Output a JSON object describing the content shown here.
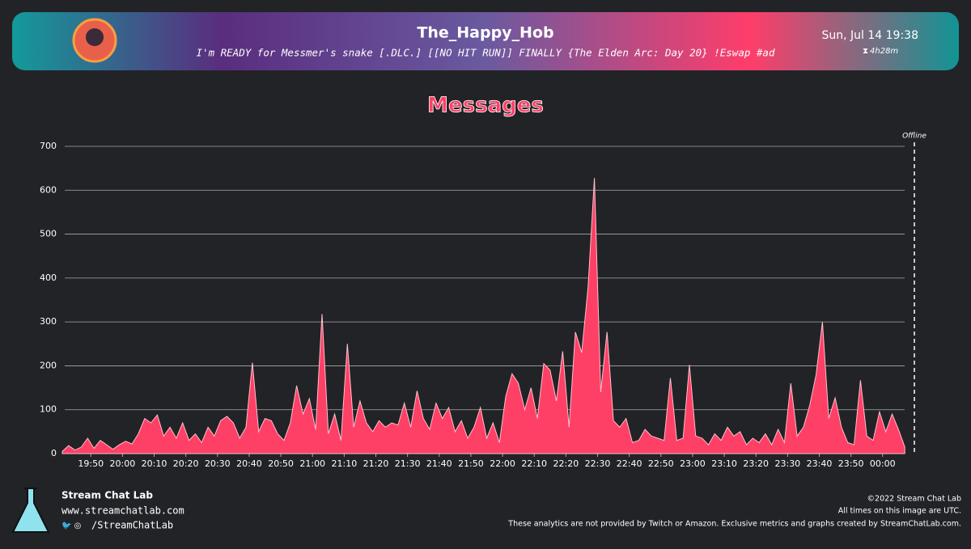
{
  "header": {
    "channel": "The_Happy_Hob",
    "stream_title": "I'm READY for Messmer's snake [.DLC.] [[NO HIT RUN]] FINALLY {The Elden Arc: Day 20} !Eswap #ad",
    "date": "Sun, Jul 14 19:38",
    "duration": "4h28m"
  },
  "chart_data": {
    "type": "area",
    "title": "Messages",
    "color": "#ff4066",
    "grid": true,
    "annotation": "Offline",
    "xlim": [
      "19:41",
      "00:09"
    ],
    "xticks": [
      "19:50",
      "20:00",
      "20:10",
      "20:20",
      "20:30",
      "20:40",
      "20:50",
      "21:00",
      "21:10",
      "21:20",
      "21:30",
      "21:40",
      "21:50",
      "22:00",
      "22:10",
      "22:20",
      "22:30",
      "22:40",
      "22:50",
      "23:00",
      "23:10",
      "23:20",
      "23:30",
      "23:40",
      "23:50",
      "00:00"
    ],
    "ylim": [
      0,
      700
    ],
    "yticks": [
      0,
      100,
      200,
      300,
      400,
      500,
      600,
      700
    ],
    "x": [
      "19:41",
      "19:43",
      "19:45",
      "19:47",
      "19:49",
      "19:51",
      "19:53",
      "19:55",
      "19:57",
      "19:59",
      "20:01",
      "20:03",
      "20:05",
      "20:07",
      "20:09",
      "20:11",
      "20:13",
      "20:15",
      "20:17",
      "20:19",
      "20:21",
      "20:23",
      "20:25",
      "20:27",
      "20:29",
      "20:31",
      "20:33",
      "20:35",
      "20:37",
      "20:39",
      "20:41",
      "20:43",
      "20:45",
      "20:47",
      "20:49",
      "20:51",
      "20:53",
      "20:55",
      "20:57",
      "20:59",
      "21:01",
      "21:03",
      "21:05",
      "21:07",
      "21:09",
      "21:11",
      "21:13",
      "21:15",
      "21:17",
      "21:19",
      "21:21",
      "21:23",
      "21:25",
      "21:27",
      "21:29",
      "21:31",
      "21:33",
      "21:35",
      "21:37",
      "21:39",
      "21:41",
      "21:43",
      "21:45",
      "21:47",
      "21:49",
      "21:51",
      "21:53",
      "21:55",
      "21:57",
      "21:59",
      "22:01",
      "22:03",
      "22:05",
      "22:07",
      "22:09",
      "22:11",
      "22:13",
      "22:15",
      "22:17",
      "22:19",
      "22:21",
      "22:23",
      "22:25",
      "22:27",
      "22:29",
      "22:31",
      "22:33",
      "22:35",
      "22:37",
      "22:39",
      "22:41",
      "22:43",
      "22:45",
      "22:47",
      "22:49",
      "22:51",
      "22:53",
      "22:55",
      "22:57",
      "22:59",
      "23:01",
      "23:03",
      "23:05",
      "23:07",
      "23:09",
      "23:11",
      "23:13",
      "23:15",
      "23:17",
      "23:19",
      "23:21",
      "23:23",
      "23:25",
      "23:27",
      "23:29",
      "23:31",
      "23:33",
      "23:35",
      "23:37",
      "23:39",
      "23:41",
      "23:43",
      "23:45",
      "23:47",
      "23:49",
      "23:51",
      "23:53",
      "23:55",
      "23:57",
      "23:59",
      "00:01",
      "00:03",
      "00:05",
      "00:07"
    ],
    "values": [
      5,
      18,
      8,
      15,
      35,
      12,
      30,
      20,
      10,
      20,
      28,
      22,
      45,
      80,
      70,
      88,
      40,
      60,
      35,
      70,
      30,
      45,
      25,
      60,
      40,
      75,
      85,
      70,
      35,
      60,
      207,
      50,
      80,
      75,
      45,
      30,
      70,
      155,
      90,
      125,
      55,
      318,
      45,
      90,
      30,
      250,
      60,
      120,
      70,
      50,
      75,
      60,
      70,
      65,
      115,
      60,
      143,
      80,
      55,
      115,
      80,
      105,
      50,
      75,
      35,
      60,
      105,
      35,
      70,
      25,
      130,
      182,
      160,
      100,
      150,
      80,
      205,
      190,
      120,
      233,
      60,
      277,
      230,
      380,
      628,
      140,
      277,
      75,
      60,
      80,
      25,
      30,
      55,
      40,
      35,
      30,
      172,
      30,
      35,
      202,
      40,
      35,
      20,
      45,
      30,
      60,
      40,
      50,
      20,
      35,
      25,
      45,
      20,
      55,
      25,
      160,
      40,
      60,
      110,
      180,
      300,
      80,
      127,
      60,
      25,
      20,
      167,
      40,
      30,
      95,
      50,
      90,
      55,
      15
    ]
  },
  "footer": {
    "brand": "Stream Chat Lab",
    "website": "www.streamchatlab.com",
    "social": "/StreamChatLab",
    "copyright": "©2022 Stream Chat Lab",
    "timezone_note": "All times on this image are UTC.",
    "disclaimer": "These analytics are not provided by Twitch or Amazon. Exclusive metrics and graphs created by StreamChatLab.com."
  }
}
